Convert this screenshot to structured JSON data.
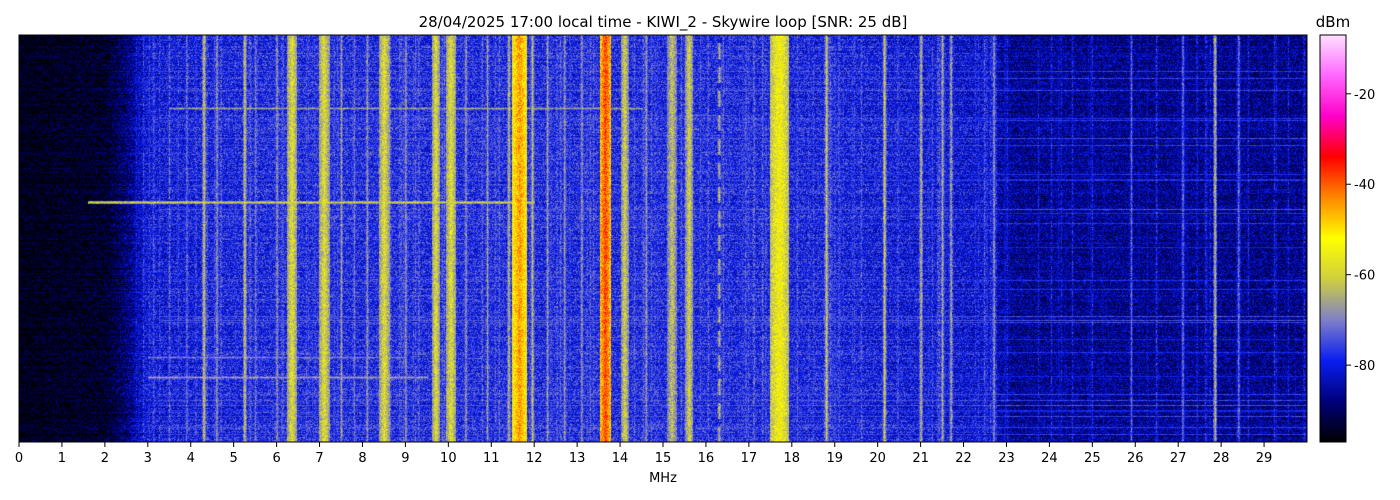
{
  "chart_data": {
    "type": "heatmap",
    "title": "28/04/2025 17:00 local time - KIWI_2 - Skywire loop [SNR: 25 dB]",
    "xlabel": "MHz",
    "ylabel": "",
    "xlim": [
      0,
      30
    ],
    "x_ticks": [
      "0",
      "1",
      "2",
      "3",
      "4",
      "5",
      "6",
      "7",
      "8",
      "9",
      "10",
      "11",
      "12",
      "13",
      "14",
      "15",
      "16",
      "17",
      "18",
      "19",
      "20",
      "21",
      "22",
      "23",
      "24",
      "25",
      "26",
      "27",
      "28",
      "29"
    ],
    "colorbar": {
      "label": "dBm",
      "range": [
        -97,
        -7
      ],
      "ticks": [
        "-20",
        "-40",
        "-60",
        "-80"
      ],
      "tick_values": [
        -20,
        -40,
        -60,
        -80
      ],
      "colormap": [
        "#000000",
        "#00007a",
        "#0a1ef0",
        "#7f7fc8",
        "#cfcf40",
        "#ffff00",
        "#ff8800",
        "#ff0000",
        "#ff00c8",
        "#ff66ff",
        "#ffe0ff"
      ]
    },
    "noise_floor": [
      [
        0,
        -96
      ],
      [
        2,
        -94
      ],
      [
        2.5,
        -88
      ],
      [
        3,
        -80
      ],
      [
        6,
        -78
      ],
      [
        15,
        -78
      ],
      [
        20,
        -79
      ],
      [
        22.5,
        -81
      ],
      [
        23,
        -86
      ],
      [
        30,
        -87
      ]
    ],
    "signals": [
      {
        "mhz": 3.9,
        "dbm": -70,
        "kind": "line"
      },
      {
        "mhz": 4.3,
        "dbm": -60,
        "kind": "line"
      },
      {
        "mhz": 4.6,
        "dbm": -66,
        "kind": "line"
      },
      {
        "mhz": 5.25,
        "dbm": -60,
        "kind": "line"
      },
      {
        "mhz": 5.5,
        "dbm": -70,
        "kind": "line"
      },
      {
        "mhz": 6.0,
        "dbm": -66,
        "kind": "line"
      },
      {
        "mhz": 6.35,
        "dbm": -58,
        "kind": "band",
        "width": 0.2
      },
      {
        "mhz": 7.1,
        "dbm": -58,
        "kind": "band",
        "width": 0.2
      },
      {
        "mhz": 7.5,
        "dbm": -66,
        "kind": "line"
      },
      {
        "mhz": 7.8,
        "dbm": -70,
        "kind": "line"
      },
      {
        "mhz": 8.1,
        "dbm": -66,
        "kind": "line"
      },
      {
        "mhz": 8.5,
        "dbm": -58,
        "kind": "band",
        "width": 0.2
      },
      {
        "mhz": 9.0,
        "dbm": -66,
        "kind": "line"
      },
      {
        "mhz": 9.7,
        "dbm": -58,
        "kind": "band",
        "width": 0.15
      },
      {
        "mhz": 10.05,
        "dbm": -58,
        "kind": "band",
        "width": 0.2
      },
      {
        "mhz": 10.4,
        "dbm": -66,
        "kind": "line"
      },
      {
        "mhz": 10.9,
        "dbm": -66,
        "kind": "line"
      },
      {
        "mhz": 11.4,
        "dbm": -62,
        "kind": "line"
      },
      {
        "mhz": 11.65,
        "dbm": -44,
        "kind": "band",
        "width": 0.3
      },
      {
        "mhz": 11.95,
        "dbm": -62,
        "kind": "line"
      },
      {
        "mhz": 12.3,
        "dbm": -66,
        "kind": "line"
      },
      {
        "mhz": 12.7,
        "dbm": -66,
        "kind": "line"
      },
      {
        "mhz": 13.1,
        "dbm": -66,
        "kind": "line"
      },
      {
        "mhz": 13.65,
        "dbm": -38,
        "kind": "band",
        "width": 0.2
      },
      {
        "mhz": 14.1,
        "dbm": -60,
        "kind": "band",
        "width": 0.15
      },
      {
        "mhz": 14.6,
        "dbm": -66,
        "kind": "line"
      },
      {
        "mhz": 15.2,
        "dbm": -62,
        "kind": "band",
        "width": 0.2
      },
      {
        "mhz": 15.6,
        "dbm": -60,
        "kind": "band",
        "width": 0.15
      },
      {
        "mhz": 16.3,
        "dbm": -62,
        "kind": "dashed"
      },
      {
        "mhz": 17.7,
        "dbm": -54,
        "kind": "band",
        "width": 0.4
      },
      {
        "mhz": 18.8,
        "dbm": -60,
        "kind": "line"
      },
      {
        "mhz": 20.15,
        "dbm": -60,
        "kind": "line"
      },
      {
        "mhz": 21.0,
        "dbm": -62,
        "kind": "line"
      },
      {
        "mhz": 21.5,
        "dbm": -64,
        "kind": "line"
      },
      {
        "mhz": 21.7,
        "dbm": -64,
        "kind": "line"
      },
      {
        "mhz": 22.7,
        "dbm": -66,
        "kind": "line"
      },
      {
        "mhz": 25.9,
        "dbm": -72,
        "kind": "line"
      },
      {
        "mhz": 27.1,
        "dbm": -70,
        "kind": "line"
      },
      {
        "mhz": 27.85,
        "dbm": -62,
        "kind": "line"
      },
      {
        "mhz": 28.4,
        "dbm": -70,
        "kind": "line"
      }
    ],
    "interference_lines": [
      {
        "time_frac": 0.41,
        "from_mhz": 1.6,
        "to_mhz": 12.0,
        "dbm": -60
      },
      {
        "time_frac": 0.18,
        "from_mhz": 3.5,
        "to_mhz": 14.5,
        "dbm": -66
      },
      {
        "time_frac": 0.84,
        "from_mhz": 3.0,
        "to_mhz": 9.5,
        "dbm": -66
      },
      {
        "time_frac": 0.79,
        "from_mhz": 3.0,
        "to_mhz": 9.0,
        "dbm": -70
      }
    ]
  }
}
